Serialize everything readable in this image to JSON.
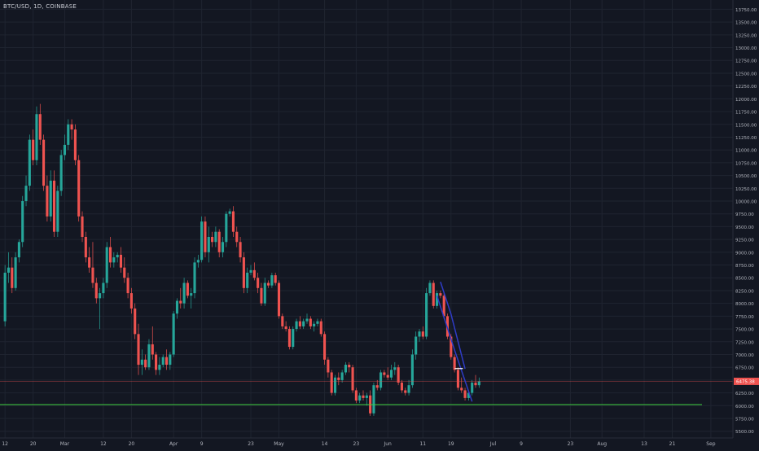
{
  "symbol_label": "BTC/USD, 1D, COINBASE",
  "colors": {
    "background": "#131722",
    "grid": "#1f2430",
    "up": "#26a69a",
    "down": "#ef5350",
    "support_line": "#3fd13f",
    "resistance_line": "#ef5350",
    "price_tag_bg": "#ef5350",
    "wedge": "#2f3cc7",
    "axis_text": "#b2b5be"
  },
  "chart_data": {
    "type": "candlestick",
    "title": "BTC/USD, 1D, COINBASE",
    "ylim": [
      5400,
      13900
    ],
    "y_ticks": [
      5500,
      5750,
      6000,
      6250,
      6500,
      6750,
      7000,
      7250,
      7500,
      7750,
      8000,
      8250,
      8500,
      8750,
      9000,
      9250,
      9500,
      9750,
      10000,
      10250,
      10500,
      10750,
      11000,
      11250,
      11500,
      11750,
      12000,
      12250,
      12500,
      12750,
      13000,
      13250,
      13500,
      13750
    ],
    "y_tick_labels": [
      "5500.00",
      "5750.00",
      "6000.00",
      "6250.00",
      "6500.00",
      "6750.00",
      "7000.00",
      "7250.00",
      "7500.00",
      "7750.00",
      "8000.00",
      "8250.00",
      "8500.00",
      "8750.00",
      "9000.00",
      "9250.00",
      "9500.00",
      "9750.00",
      "10000.00",
      "10250.00",
      "10500.00",
      "10750.00",
      "11000.00",
      "11250.00",
      "11500.00",
      "11750.00",
      "12000.00",
      "12250.00",
      "12500.00",
      "12750.00",
      "13000.00",
      "13250.00",
      "13500.00",
      "13750.00"
    ],
    "x_labels": [
      {
        "label": "12",
        "bar": 0
      },
      {
        "label": "20",
        "bar": 8
      },
      {
        "label": "Mar",
        "bar": 17
      },
      {
        "label": "12",
        "bar": 28
      },
      {
        "label": "20",
        "bar": 36
      },
      {
        "label": "Apr",
        "bar": 48
      },
      {
        "label": "9",
        "bar": 56
      },
      {
        "label": "23",
        "bar": 70
      },
      {
        "label": "May",
        "bar": 78
      },
      {
        "label": "14",
        "bar": 91
      },
      {
        "label": "23",
        "bar": 100
      },
      {
        "label": "Jun",
        "bar": 109
      },
      {
        "label": "11",
        "bar": 119
      },
      {
        "label": "19",
        "bar": 127
      },
      {
        "label": "Jul",
        "bar": 139
      },
      {
        "label": "9",
        "bar": 147
      },
      {
        "label": "23",
        "bar": 161
      },
      {
        "label": "Aug",
        "bar": 170
      },
      {
        "label": "13",
        "bar": 182
      },
      {
        "label": "21",
        "bar": 190
      },
      {
        "label": "Sep",
        "bar": 201
      }
    ],
    "last_price": 6475.38,
    "last_price_label": "6475.38",
    "support_level": 6020,
    "resistance_level": 6475.38,
    "candles": [
      [
        7650,
        8750,
        7550,
        8600
      ],
      [
        8600,
        9000,
        8400,
        8700
      ],
      [
        8700,
        8900,
        8200,
        8300
      ],
      [
        8300,
        9000,
        8250,
        8900
      ],
      [
        8900,
        9250,
        8800,
        9200
      ],
      [
        9200,
        10100,
        9100,
        10000
      ],
      [
        10000,
        10500,
        9900,
        10300
      ],
      [
        10300,
        11300,
        10200,
        11200
      ],
      [
        11200,
        11400,
        10700,
        10800
      ],
      [
        10800,
        11850,
        10700,
        11700
      ],
      [
        11700,
        11900,
        11100,
        11200
      ],
      [
        11200,
        11300,
        10200,
        10300
      ],
      [
        10300,
        10500,
        9600,
        9700
      ],
      [
        9700,
        10600,
        9600,
        10400
      ],
      [
        10400,
        10600,
        9300,
        9400
      ],
      [
        9400,
        10300,
        9300,
        10200
      ],
      [
        10200,
        11000,
        10100,
        10900
      ],
      [
        10900,
        11300,
        10800,
        11100
      ],
      [
        11100,
        11600,
        11000,
        11500
      ],
      [
        11500,
        11600,
        11200,
        11400
      ],
      [
        11400,
        11500,
        10700,
        10800
      ],
      [
        10800,
        10900,
        9600,
        9700
      ],
      [
        9700,
        9800,
        9200,
        9300
      ],
      [
        9300,
        9400,
        8800,
        8900
      ],
      [
        8900,
        9100,
        8600,
        8700
      ],
      [
        8700,
        9200,
        8300,
        8400
      ],
      [
        8400,
        8500,
        8000,
        8100
      ],
      [
        8100,
        8300,
        7500,
        8200
      ],
      [
        8200,
        8500,
        8100,
        8400
      ],
      [
        8400,
        9200,
        8300,
        9100
      ],
      [
        9100,
        9300,
        8700,
        8800
      ],
      [
        8800,
        9000,
        8700,
        8900
      ],
      [
        8900,
        9000,
        8800,
        8950
      ],
      [
        8950,
        9100,
        8600,
        8700
      ],
      [
        8700,
        8900,
        8400,
        8500
      ],
      [
        8500,
        8600,
        8100,
        8200
      ],
      [
        8200,
        8300,
        7800,
        7900
      ],
      [
        7900,
        8000,
        7300,
        7400
      ],
      [
        7400,
        7600,
        6600,
        6800
      ],
      [
        6800,
        7100,
        6600,
        6900
      ],
      [
        6900,
        7000,
        6700,
        6750
      ],
      [
        6750,
        7300,
        6700,
        7200
      ],
      [
        7200,
        7550,
        6900,
        7000
      ],
      [
        7000,
        7050,
        6600,
        6700
      ],
      [
        6700,
        6950,
        6600,
        6800
      ],
      [
        6800,
        7000,
        6750,
        6950
      ],
      [
        6950,
        7100,
        6700,
        6800
      ],
      [
        6800,
        7050,
        6700,
        7000
      ],
      [
        7000,
        7850,
        6950,
        7800
      ],
      [
        7800,
        8100,
        7700,
        8050
      ],
      [
        8050,
        8300,
        7900,
        8000
      ],
      [
        8000,
        8500,
        7900,
        8400
      ],
      [
        8400,
        8450,
        8100,
        8150
      ],
      [
        8150,
        8300,
        7900,
        8200
      ],
      [
        8200,
        8900,
        8100,
        8800
      ],
      [
        8800,
        8950,
        8700,
        8850
      ],
      [
        8850,
        9700,
        8800,
        9600
      ],
      [
        9600,
        9700,
        8900,
        9000
      ],
      [
        9000,
        9500,
        8800,
        9300
      ],
      [
        9300,
        9400,
        9100,
        9200
      ],
      [
        9200,
        9500,
        9100,
        9400
      ],
      [
        9400,
        9450,
        8900,
        9000
      ],
      [
        9000,
        9300,
        8900,
        9200
      ],
      [
        9200,
        9800,
        9100,
        9750
      ],
      [
        9750,
        9850,
        9700,
        9800
      ],
      [
        9800,
        9900,
        9300,
        9400
      ],
      [
        9400,
        9500,
        9100,
        9200
      ],
      [
        9200,
        9300,
        8800,
        8900
      ],
      [
        8900,
        9000,
        8200,
        8300
      ],
      [
        8300,
        8700,
        8200,
        8600
      ],
      [
        8600,
        8750,
        8550,
        8650
      ],
      [
        8650,
        8800,
        8450,
        8500
      ],
      [
        8500,
        8600,
        8200,
        8300
      ],
      [
        8300,
        8400,
        7950,
        8000
      ],
      [
        8000,
        8500,
        7950,
        8400
      ],
      [
        8400,
        8450,
        8300,
        8350
      ],
      [
        8350,
        8600,
        8300,
        8550
      ],
      [
        8550,
        8600,
        8350,
        8400
      ],
      [
        8400,
        8450,
        7700,
        7750
      ],
      [
        7750,
        7800,
        7500,
        7550
      ],
      [
        7550,
        7650,
        7450,
        7500
      ],
      [
        7500,
        7550,
        7100,
        7150
      ],
      [
        7150,
        7550,
        7100,
        7500
      ],
      [
        7500,
        7700,
        7450,
        7650
      ],
      [
        7650,
        7750,
        7500,
        7550
      ],
      [
        7550,
        7700,
        7500,
        7650
      ],
      [
        7650,
        7800,
        7600,
        7700
      ],
      [
        7700,
        7750,
        7500,
        7550
      ],
      [
        7550,
        7650,
        7450,
        7600
      ],
      [
        7600,
        7700,
        7550,
        7650
      ],
      [
        7650,
        7700,
        7350,
        7400
      ],
      [
        7400,
        7450,
        6800,
        6900
      ],
      [
        6900,
        6950,
        6550,
        6650
      ],
      [
        6650,
        6700,
        6200,
        6250
      ],
      [
        6250,
        6600,
        6200,
        6550
      ],
      [
        6550,
        6650,
        6400,
        6500
      ],
      [
        6500,
        6700,
        6450,
        6650
      ],
      [
        6650,
        6850,
        6600,
        6800
      ],
      [
        6800,
        6850,
        6650,
        6750
      ],
      [
        6750,
        6800,
        6250,
        6300
      ],
      [
        6300,
        6350,
        6050,
        6100
      ],
      [
        6100,
        6250,
        6050,
        6200
      ],
      [
        6200,
        6300,
        6100,
        6150
      ],
      [
        6150,
        6250,
        6000,
        6200
      ],
      [
        6200,
        6300,
        5800,
        5850
      ],
      [
        5850,
        6450,
        5800,
        6400
      ],
      [
        6400,
        6500,
        6300,
        6350
      ],
      [
        6350,
        6700,
        6300,
        6650
      ],
      [
        6650,
        6700,
        6550,
        6600
      ],
      [
        6600,
        6750,
        6500,
        6550
      ],
      [
        6550,
        6800,
        6500,
        6700
      ],
      [
        6700,
        6850,
        6600,
        6750
      ],
      [
        6750,
        6800,
        6400,
        6450
      ],
      [
        6450,
        6500,
        6250,
        6300
      ],
      [
        6300,
        6350,
        6200,
        6250
      ],
      [
        6250,
        6500,
        6200,
        6400
      ],
      [
        6400,
        7100,
        6350,
        7000
      ],
      [
        7000,
        7450,
        6900,
        7350
      ],
      [
        7350,
        7500,
        7250,
        7450
      ],
      [
        7450,
        7550,
        7300,
        7350
      ],
      [
        7350,
        8300,
        7300,
        8200
      ],
      [
        8200,
        8450,
        8150,
        8400
      ],
      [
        8400,
        8450,
        7900,
        7950
      ],
      [
        7950,
        8250,
        7900,
        8200
      ],
      [
        8200,
        8250,
        8100,
        8150
      ],
      [
        8150,
        8200,
        7700,
        7750
      ],
      [
        7750,
        7800,
        7300,
        7350
      ],
      [
        7350,
        7400,
        6900,
        6950
      ],
      [
        6950,
        7000,
        6650,
        6700
      ],
      [
        6700,
        6750,
        6300,
        6350
      ],
      [
        6350,
        6550,
        6250,
        6300
      ],
      [
        6300,
        6350,
        6100,
        6150
      ],
      [
        6150,
        6300,
        6100,
        6250
      ],
      [
        6250,
        6500,
        6200,
        6450
      ],
      [
        6450,
        6600,
        6350,
        6400
      ],
      [
        6400,
        6550,
        6350,
        6475
      ]
    ]
  }
}
